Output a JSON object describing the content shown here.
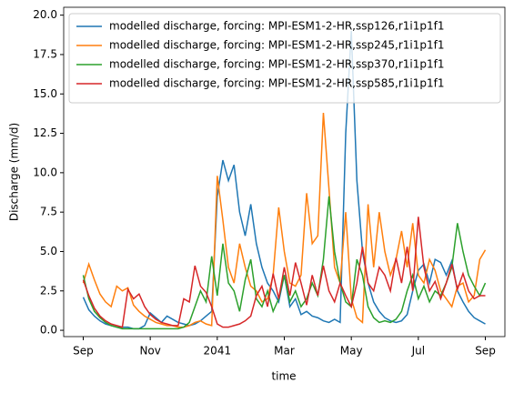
{
  "chart_data": {
    "type": "line",
    "xlabel": "time",
    "ylabel": "Discharge (mm/d)",
    "categories": [
      "Sep",
      null,
      null,
      null,
      null,
      null,
      null,
      null,
      null,
      null,
      null,
      null,
      "Nov",
      null,
      null,
      null,
      null,
      null,
      null,
      null,
      null,
      null,
      null,
      null,
      "2041",
      null,
      null,
      null,
      null,
      null,
      null,
      null,
      null,
      null,
      null,
      null,
      "Mar",
      null,
      null,
      null,
      null,
      null,
      null,
      null,
      null,
      null,
      null,
      null,
      "May",
      null,
      null,
      null,
      null,
      null,
      null,
      null,
      null,
      null,
      null,
      null,
      "Jul",
      null,
      null,
      null,
      null,
      null,
      null,
      null,
      null,
      null,
      null,
      null,
      "Sep"
    ],
    "series": [
      {
        "name": "modelled discharge, forcing: MPI-ESM1-2-HR,ssp126,r1i1p1f1",
        "color": "#1f77b4",
        "values": [
          2.1,
          1.3,
          0.9,
          0.6,
          0.4,
          0.3,
          0.2,
          0.2,
          0.2,
          0.1,
          0.1,
          0.3,
          1.1,
          0.8,
          0.5,
          0.9,
          0.7,
          0.5,
          0.4,
          0.3,
          0.4,
          0.6,
          0.9,
          1.2,
          8.5,
          10.8,
          9.5,
          10.5,
          7.5,
          6.0,
          8.0,
          5.5,
          4.0,
          3.0,
          2.5,
          1.8,
          3.5,
          1.5,
          2.0,
          1.0,
          1.2,
          0.9,
          0.8,
          0.6,
          0.5,
          0.7,
          0.5,
          12.5,
          19.0,
          9.5,
          5.0,
          3.0,
          1.8,
          1.2,
          0.8,
          0.6,
          0.5,
          0.6,
          1.0,
          2.5,
          3.8,
          4.2,
          3.0,
          4.5,
          4.3,
          3.5,
          4.4,
          2.5,
          1.8,
          1.2,
          0.8,
          0.6,
          0.4
        ]
      },
      {
        "name": "modelled discharge, forcing: MPI-ESM1-2-HR,ssp245,r1i1p1f1",
        "color": "#ff7f0e",
        "values": [
          3.0,
          4.2,
          3.2,
          2.3,
          1.8,
          1.5,
          2.8,
          2.5,
          2.7,
          1.6,
          1.2,
          0.9,
          0.7,
          0.5,
          0.4,
          0.3,
          0.3,
          0.2,
          0.2,
          0.3,
          0.5,
          0.6,
          0.4,
          0.3,
          9.8,
          7.0,
          4.0,
          3.0,
          5.5,
          4.0,
          2.8,
          2.5,
          1.8,
          2.0,
          3.5,
          7.8,
          5.0,
          3.0,
          2.8,
          3.5,
          8.7,
          5.5,
          6.0,
          13.8,
          9.0,
          4.0,
          3.0,
          7.5,
          2.0,
          0.8,
          0.5,
          8.0,
          4.0,
          7.5,
          5.0,
          3.5,
          4.5,
          6.3,
          4.0,
          6.8,
          3.5,
          3.0,
          4.5,
          3.8,
          2.5,
          2.0,
          1.5,
          2.8,
          3.0,
          1.8,
          2.2,
          4.5,
          5.1
        ]
      },
      {
        "name": "modelled discharge, forcing: MPI-ESM1-2-HR,ssp370,r1i1p1f1",
        "color": "#2ca02c",
        "values": [
          3.5,
          2.0,
          1.2,
          0.8,
          0.5,
          0.3,
          0.2,
          0.1,
          0.1,
          0.1,
          0.1,
          0.1,
          0.1,
          0.1,
          0.1,
          0.1,
          0.1,
          0.1,
          0.2,
          0.5,
          1.5,
          2.5,
          1.8,
          4.7,
          2.2,
          5.5,
          3.0,
          2.5,
          1.2,
          3.2,
          4.5,
          2.0,
          1.5,
          2.5,
          1.2,
          2.0,
          3.5,
          1.8,
          2.5,
          1.5,
          2.0,
          3.0,
          2.2,
          4.5,
          8.5,
          5.0,
          3.0,
          1.8,
          1.5,
          4.5,
          3.5,
          1.5,
          0.8,
          0.5,
          0.6,
          0.5,
          0.7,
          1.2,
          2.5,
          3.5,
          2.0,
          2.8,
          1.8,
          2.5,
          2.2,
          3.0,
          4.0,
          6.8,
          5.0,
          3.5,
          2.8,
          2.2,
          3.0
        ]
      },
      {
        "name": "modelled discharge, forcing: MPI-ESM1-2-HR,ssp585,r1i1p1f1",
        "color": "#d62728",
        "values": [
          3.2,
          2.2,
          1.4,
          0.9,
          0.6,
          0.4,
          0.3,
          0.2,
          2.6,
          2.0,
          2.3,
          1.5,
          1.0,
          0.7,
          0.5,
          0.4,
          0.3,
          0.3,
          2.0,
          1.8,
          4.1,
          2.8,
          2.4,
          1.5,
          0.4,
          0.2,
          0.2,
          0.3,
          0.4,
          0.6,
          0.9,
          2.2,
          2.8,
          1.5,
          3.6,
          2.0,
          4.0,
          2.2,
          4.3,
          3.0,
          1.6,
          3.5,
          2.2,
          4.1,
          2.5,
          1.8,
          3.0,
          2.2,
          1.5,
          3.0,
          5.3,
          3.0,
          2.5,
          4.0,
          3.5,
          2.5,
          4.6,
          3.0,
          5.3,
          2.5,
          7.2,
          4.0,
          2.5,
          3.1,
          2.0,
          3.0,
          4.2,
          2.6,
          3.6,
          2.5,
          2.0,
          2.2,
          2.2
        ]
      }
    ],
    "ylim": [
      -0.4,
      20.5
    ],
    "yticks": [
      {
        "value": 0,
        "label": "0.0"
      },
      2.5,
      {
        "value": 5,
        "label": "5.0"
      },
      7.5,
      {
        "value": 10,
        "label": "10.0"
      },
      12.5,
      {
        "value": 15,
        "label": "15.0"
      },
      17.5,
      {
        "value": 20,
        "label": "20.0"
      }
    ],
    "grid": false,
    "legend": "upper right"
  }
}
